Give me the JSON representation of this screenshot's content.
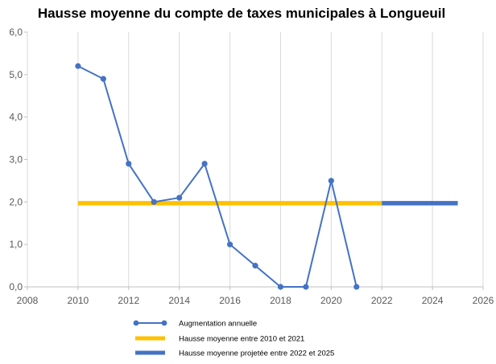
{
  "chart_data": {
    "type": "line",
    "title": "Hausse moyenne du compte de taxes municipales à Longueuil",
    "xlabel": "",
    "ylabel": "",
    "xlim": [
      2008,
      2026
    ],
    "ylim": [
      0,
      6
    ],
    "x_ticks": [
      "2008",
      "2010",
      "2012",
      "2014",
      "2016",
      "2018",
      "2020",
      "2022",
      "2024",
      "2026"
    ],
    "y_ticks": [
      "0,0",
      "1,0",
      "2,0",
      "3,0",
      "4,0",
      "5,0",
      "6,0"
    ],
    "grid": "vertical",
    "legend_position": "bottom",
    "series": [
      {
        "name": "Augmentation annuelle",
        "color": "#4472C4",
        "marker": "circle",
        "x": [
          2010,
          2011,
          2012,
          2013,
          2014,
          2015,
          2016,
          2017,
          2018,
          2019,
          2020,
          2021
        ],
        "y": [
          5.2,
          4.9,
          2.9,
          2.0,
          2.1,
          2.9,
          1.0,
          0.5,
          0.0,
          0.0,
          2.5,
          0.0
        ]
      },
      {
        "name": "Hausse moyenne entre 2010 et 2021",
        "color": "#FFC000",
        "x": [
          2010,
          2022
        ],
        "y": [
          1.97,
          1.97
        ]
      },
      {
        "name": "Hausse moyenne projetée entre 2022 et 2025",
        "color": "#4472C4",
        "x": [
          2022,
          2025
        ],
        "y": [
          1.97,
          1.97
        ]
      }
    ]
  }
}
